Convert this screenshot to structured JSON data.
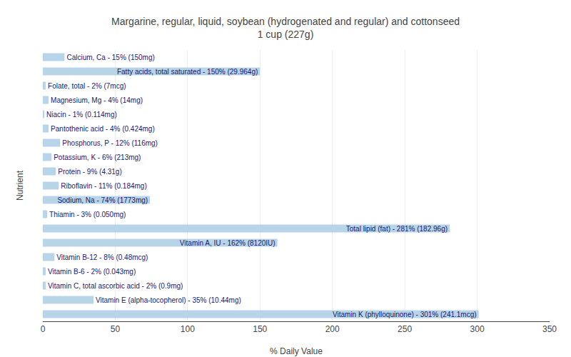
{
  "chart_data": {
    "type": "bar",
    "orientation": "horizontal",
    "title": "Margarine, regular, liquid, soybean (hydrogenated and regular) and cottonseed\n1 cup (227g)",
    "xlabel": "% Daily Value",
    "ylabel": "Nutrient",
    "categories": [
      "Calcium, Ca - 15% (150mg)",
      "Fatty acids, total saturated - 150% (29.964g)",
      "Folate, total - 2% (7mcg)",
      "Magnesium, Mg - 4% (14mg)",
      "Niacin - 1% (0.114mg)",
      "Pantothenic acid - 4% (0.424mg)",
      "Phosphorus, P - 12% (116mg)",
      "Potassium, K - 6% (213mg)",
      "Protein - 9% (4.31g)",
      "Riboflavin - 11% (0.184mg)",
      "Sodium, Na - 74% (1773mg)",
      "Thiamin - 3% (0.050mg)",
      "Total lipid (fat) - 281% (182.96g)",
      "Vitamin A, IU - 162% (8120IU)",
      "Vitamin B-12 - 8% (0.48mcg)",
      "Vitamin B-6 - 2% (0.043mg)",
      "Vitamin C, total ascorbic acid - 2% (0.9mg)",
      "Vitamin E (alpha-tocopherol) - 35% (10.44mg)",
      "Vitamin K (phylloquinone) - 301% (241.1mcg)"
    ],
    "values": [
      15,
      150,
      2,
      4,
      1,
      4,
      12,
      6,
      9,
      11,
      74,
      3,
      281,
      162,
      8,
      2,
      2,
      35,
      301
    ],
    "color": "#b8d4e8",
    "xlim": [
      0,
      350
    ],
    "xticks": [
      0,
      50,
      100,
      150,
      200,
      250,
      300,
      350
    ],
    "grid": true,
    "tick_labels": "x"
  }
}
